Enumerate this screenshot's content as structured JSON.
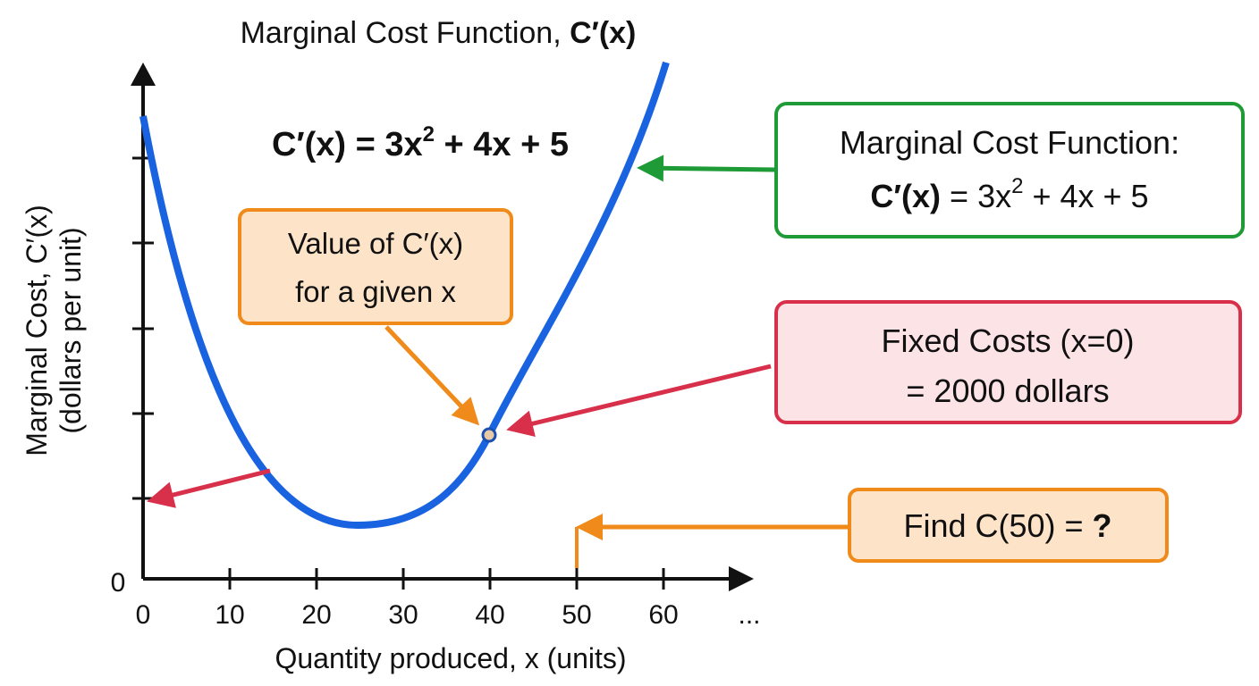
{
  "title": {
    "text": "Marginal Cost Function, ",
    "emphasis": "C′(x)"
  },
  "equation": {
    "lhs": "C′(x) = 3x",
    "exponent": "2",
    "rhs": " + 4x + 5"
  },
  "axes": {
    "y_label": [
      "Marginal Cost, C′(x)",
      "(dollars per unit)"
    ],
    "y_origin": "0",
    "x_label": "Quantity produced, x (units)",
    "x_ticks": [
      0,
      10,
      20,
      30,
      40,
      50,
      60
    ],
    "x_more": "..."
  },
  "callouts": {
    "value_box": [
      "Value of C′(x)",
      "for a given x"
    ],
    "marginal_box": {
      "heading": "Marginal Cost Function:",
      "lhs": "C′(x)",
      "eq": " = 3x",
      "exponent": "2",
      "rhs": " + 4x + 5"
    },
    "fixed_box": [
      "Fixed Costs (x=0)",
      "= 2000 dollars"
    ],
    "find_box": {
      "text": "Find C(50) = ",
      "emphasis": "?"
    }
  }
}
